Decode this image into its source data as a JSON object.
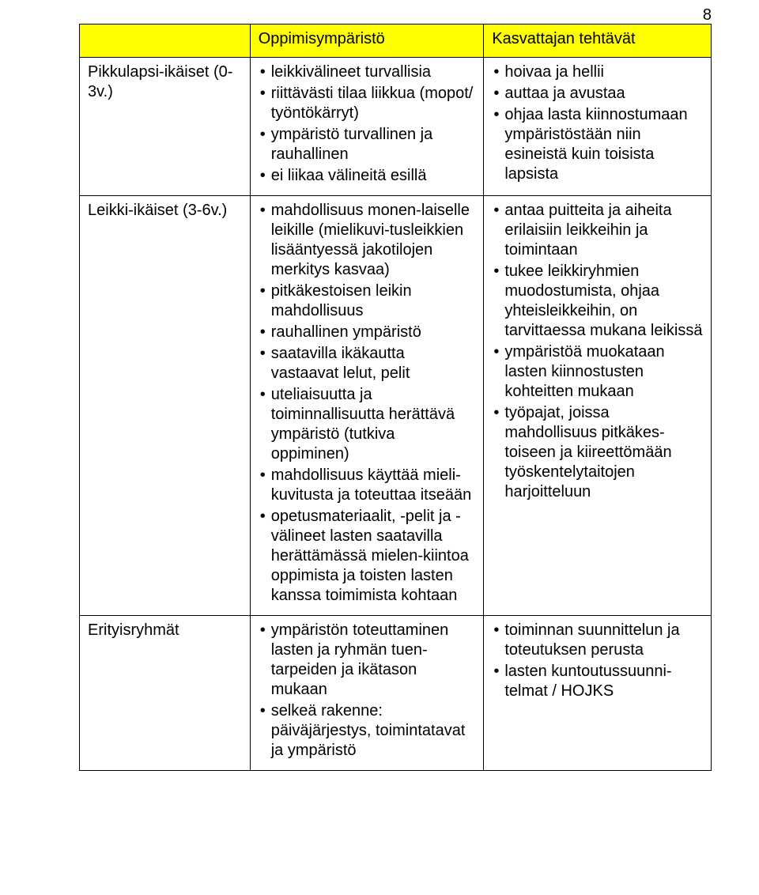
{
  "page_number": "8",
  "colors": {
    "header_bg": "#ffff00",
    "border": "#000000",
    "text": "#000000",
    "page_bg": "#ffffff"
  },
  "typography": {
    "font_family": "Arial",
    "font_size_pt": 15,
    "line_height": 1.25
  },
  "table": {
    "columns": [
      "",
      "Oppimisympäristö",
      "Kasvattajan tehtävät"
    ],
    "column_widths_pct": [
      27,
      37,
      36
    ],
    "rows": [
      {
        "label": "Pikkulapsi-ikäiset (0-3v.)",
        "left": [
          "leikkivälineet turvallisia",
          "riittävästi tilaa liikkua (mopot/ työntökärryt)",
          "ympäristö turvallinen ja rauhallinen",
          "ei liikaa välineitä esillä"
        ],
        "right": [
          "hoivaa ja hellii",
          "auttaa ja avustaa",
          "ohjaa lasta kiinnostumaan ympäristöstään niin esineistä kuin toisista lapsista"
        ]
      },
      {
        "label": "Leikki-ikäiset (3-6v.)",
        "left": [
          "mahdollisuus monen-laiselle leikille (mielikuvi-tusleikkien lisääntyessä jakotilojen merkitys kasvaa)",
          "pitkäkestoisen leikin mahdollisuus",
          "rauhallinen ympäristö",
          "saatavilla ikäkautta vastaavat lelut, pelit",
          "uteliaisuutta ja toiminnallisuutta herättävä ympäristö (tutkiva oppiminen)",
          "mahdollisuus käyttää mieli-kuvitusta ja toteuttaa itseään",
          "opetusmateriaalit, -pelit ja -välineet lasten saatavilla herättämässä mielen-kiintoa oppimista ja toisten lasten kanssa toimimista kohtaan"
        ],
        "right": [
          "antaa puitteita ja aiheita erilaisiin leikkeihin ja toimintaan",
          "tukee leikkiryhmien muodostumista, ohjaa yhteisleikkeihin, on tarvittaessa mukana leikissä",
          "ympäristöä muokataan lasten kiinnostusten kohteitten mukaan",
          "työpajat, joissa mahdollisuus pitkäkes-toiseen ja kiireettömään työskentelytaitojen harjoitteluun"
        ]
      },
      {
        "label": "Erityisryhmät",
        "left": [
          "ympäristön toteuttaminen lasten ja ryhmän tuen-tarpeiden ja ikätason mukaan",
          "selkeä rakenne: päiväjärjestys, toimintatavat ja ympäristö"
        ],
        "right": [
          "toiminnan suunnittelun ja toteutuksen perusta",
          "lasten kuntoutussuunni-telmat / HOJKS"
        ]
      }
    ]
  }
}
